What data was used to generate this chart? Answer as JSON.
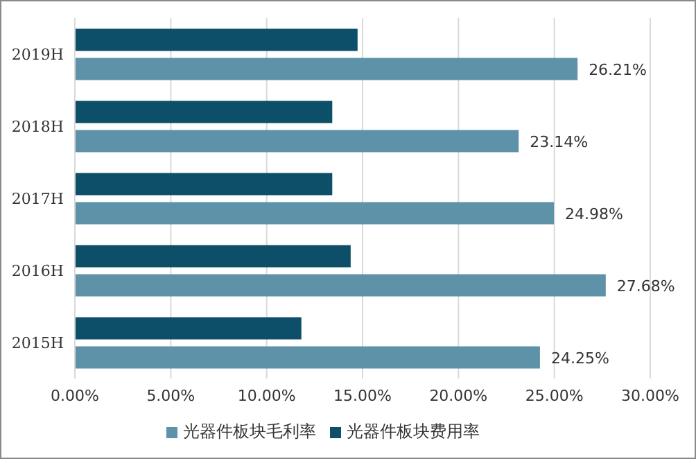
{
  "chart_data": {
    "type": "bar",
    "orientation": "horizontal",
    "categories": [
      "2019H",
      "2018H",
      "2017H",
      "2016H",
      "2015H"
    ],
    "series": [
      {
        "name": "光器件板块费用率",
        "color": "#0d4f69",
        "values": [
          14.74,
          13.42,
          13.42,
          14.38,
          11.81
        ]
      },
      {
        "name": "光器件板块毛利率",
        "color": "#5e92a8",
        "values": [
          26.21,
          23.14,
          24.98,
          27.68,
          24.25
        ],
        "value_labels": [
          "26.21%",
          "23.14%",
          "24.98%",
          "27.68%",
          "24.25%"
        ]
      }
    ],
    "xlim": [
      0,
      30
    ],
    "xticks": [
      {
        "value": 0,
        "label": "0.00%"
      },
      {
        "value": 5,
        "label": "5.00%"
      },
      {
        "value": 10,
        "label": "10.00%"
      },
      {
        "value": 15,
        "label": "15.00%"
      },
      {
        "value": 20,
        "label": "20.00%"
      },
      {
        "value": 25,
        "label": "25.00%"
      },
      {
        "value": 30,
        "label": "30.00%"
      }
    ],
    "grid": "x",
    "legend": "bottom"
  }
}
